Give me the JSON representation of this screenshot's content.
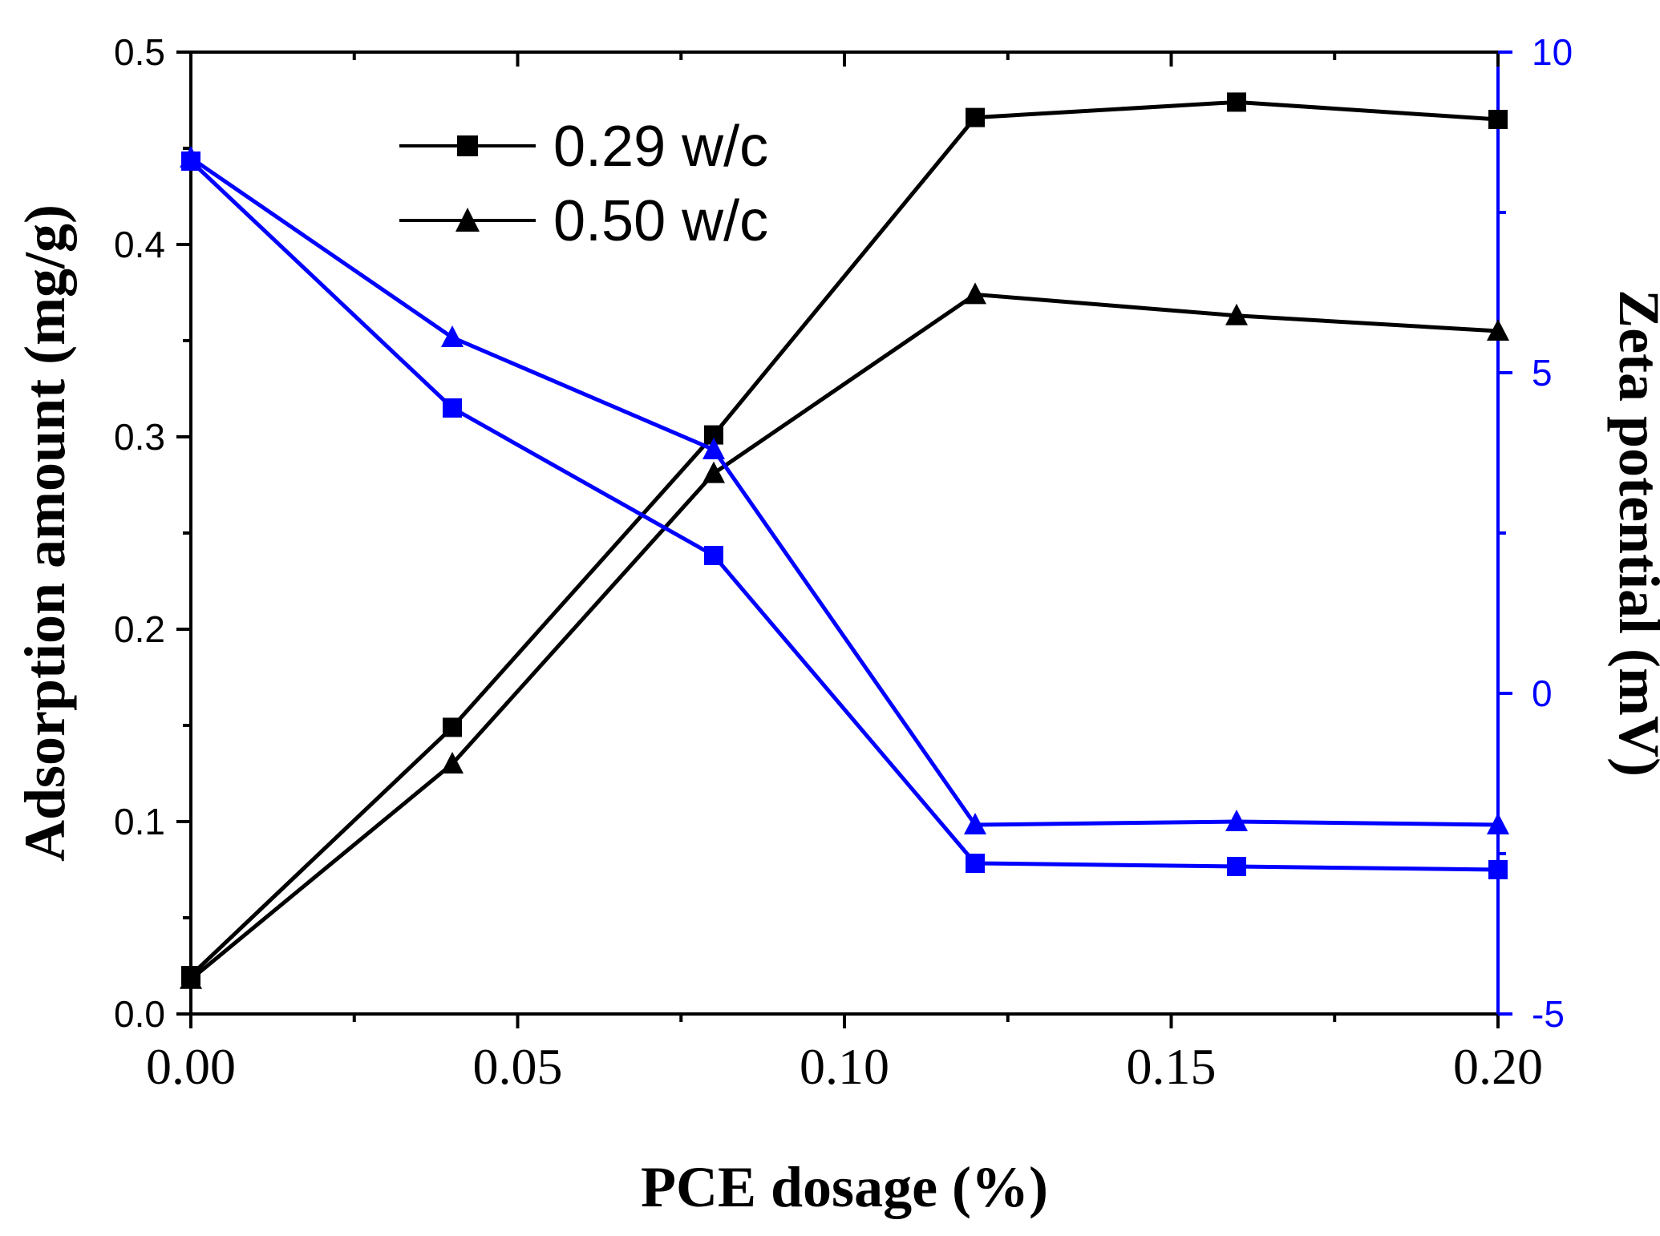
{
  "chart_data": {
    "type": "line",
    "xlabel": "PCE dosage (%)",
    "ylabel": "Adsorption amount (mg/g)",
    "ylabel_right": "Zeta potential (mV)",
    "xlim": [
      0,
      0.2
    ],
    "ylim": [
      0,
      0.5
    ],
    "ylim_right": [
      -5,
      10
    ],
    "x_ticks": [
      "0.00",
      "0.05",
      "0.10",
      "0.15",
      "0.20"
    ],
    "x_tick_values": [
      0,
      0.05,
      0.1,
      0.15,
      0.2
    ],
    "y_ticks": [
      "0.0",
      "0.1",
      "0.2",
      "0.3",
      "0.4",
      "0.5"
    ],
    "y_tick_values": [
      0,
      0.1,
      0.2,
      0.3,
      0.4,
      0.5
    ],
    "y_right_ticks": [
      "-5",
      "0",
      "5",
      "10"
    ],
    "y_right_tick_values": [
      -5,
      0,
      5,
      10
    ],
    "grid": false,
    "legend_position": "top-left",
    "legend": [
      "0.29 w/c",
      "0.50 w/c"
    ],
    "x": [
      0,
      0.04,
      0.08,
      0.12,
      0.16,
      0.2
    ],
    "series": [
      {
        "name": "0.29 w/c",
        "axis": "left",
        "marker": "square",
        "color": "#000000",
        "values": [
          0.02,
          0.149,
          0.301,
          0.466,
          0.474,
          0.465
        ]
      },
      {
        "name": "0.50 w/c",
        "axis": "left",
        "marker": "triangle",
        "color": "#000000",
        "values": [
          0.018,
          0.13,
          0.281,
          0.374,
          0.363,
          0.355
        ]
      },
      {
        "name": "0.29 w/c zeta",
        "axis": "right",
        "marker": "square",
        "color": "#0000ff",
        "values": [
          8.3,
          4.45,
          2.15,
          -2.65,
          -2.7,
          -2.75
        ]
      },
      {
        "name": "0.50 w/c zeta",
        "axis": "right",
        "marker": "triangle",
        "color": "#0000ff",
        "values": [
          8.35,
          5.55,
          3.8,
          -2.05,
          -2.0,
          -2.05
        ]
      }
    ]
  }
}
